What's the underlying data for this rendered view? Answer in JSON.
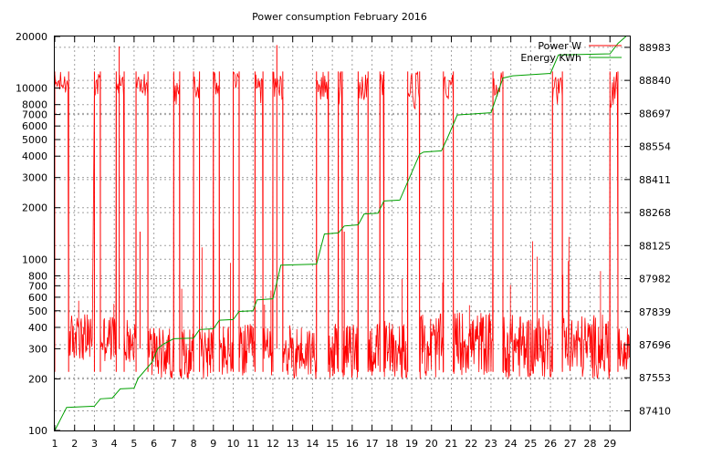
{
  "chart_data": {
    "type": "line",
    "title": "Power consumption February 2016",
    "xlim": [
      1,
      30
    ],
    "x_ticks": [
      1,
      2,
      3,
      4,
      5,
      6,
      7,
      8,
      9,
      10,
      11,
      12,
      13,
      14,
      15,
      16,
      17,
      18,
      19,
      20,
      21,
      22,
      23,
      24,
      25,
      26,
      27,
      28,
      29
    ],
    "y_scale": "log",
    "ylim": [
      100,
      20000
    ],
    "y_ticks": [
      100,
      200,
      300,
      400,
      500,
      600,
      700,
      800,
      1000,
      2000,
      3000,
      4000,
      5000,
      6000,
      7000,
      8000,
      10000,
      20000
    ],
    "y2lim": [
      87325,
      89030
    ],
    "y2_ticks": [
      87410,
      87553,
      87696,
      87839,
      87982,
      88125,
      88268,
      88411,
      88554,
      88697,
      88840,
      88983
    ],
    "grid": true,
    "legend_position": "top-right",
    "colors": {
      "power": "#ff0000",
      "energy": "#00a000"
    },
    "series": [
      {
        "name": "Power W",
        "axis": "left",
        "style": "noisy-line",
        "baseline_ranges": [
          [
            1.7,
            2.9,
            250,
            480
          ],
          [
            3.3,
            4.1,
            250,
            480
          ],
          [
            4.5,
            5.1,
            250,
            450
          ],
          [
            5.7,
            6.0,
            210,
            400
          ],
          [
            6.0,
            7.0,
            200,
            400
          ],
          [
            7.3,
            8.0,
            200,
            400
          ],
          [
            8.3,
            9.0,
            200,
            420
          ],
          [
            9.3,
            10.0,
            200,
            420
          ],
          [
            10.3,
            11.1,
            200,
            420
          ],
          [
            11.5,
            12.0,
            200,
            420
          ],
          [
            12.5,
            14.2,
            200,
            420
          ],
          [
            14.8,
            15.3,
            200,
            420
          ],
          [
            15.5,
            16.3,
            200,
            420
          ],
          [
            16.8,
            17.4,
            200,
            440
          ],
          [
            17.6,
            18.8,
            200,
            450
          ],
          [
            19.4,
            20.6,
            200,
            480
          ],
          [
            21.1,
            23.1,
            210,
            500
          ],
          [
            23.6,
            26.1,
            200,
            480
          ],
          [
            26.6,
            29.0,
            200,
            480
          ],
          [
            29.4,
            30.0,
            220,
            400
          ]
        ],
        "high_ranges": [
          [
            1.0,
            1.7,
            9000,
            12500
          ],
          [
            3.0,
            3.3,
            8500,
            12500
          ],
          [
            4.1,
            4.5,
            8500,
            12500
          ],
          [
            5.1,
            5.7,
            8500,
            12500
          ],
          [
            7.0,
            7.3,
            8000,
            12500
          ],
          [
            8.0,
            8.3,
            8500,
            12500
          ],
          [
            9.0,
            9.3,
            8500,
            12500
          ],
          [
            10.0,
            10.3,
            8500,
            12500
          ],
          [
            11.1,
            11.5,
            8000,
            12500
          ],
          [
            12.0,
            12.5,
            8500,
            12500
          ],
          [
            14.2,
            14.8,
            8500,
            12500
          ],
          [
            15.3,
            15.5,
            8000,
            12500
          ],
          [
            16.3,
            16.8,
            8500,
            12500
          ],
          [
            17.4,
            17.6,
            8500,
            12500
          ],
          [
            18.8,
            19.4,
            7500,
            12500
          ],
          [
            20.6,
            21.1,
            8000,
            12500
          ],
          [
            23.1,
            23.6,
            8500,
            12500
          ],
          [
            26.1,
            26.6,
            8000,
            12500
          ],
          [
            29.0,
            29.4,
            7500,
            12500
          ]
        ],
        "peaks": [
          [
            4.25,
            17500
          ],
          [
            12.2,
            17800
          ],
          [
            5.3,
            1450
          ],
          [
            9.0,
            1500
          ],
          [
            15.6,
            1450
          ]
        ]
      },
      {
        "name": "Energy KWh",
        "axis": "right",
        "style": "line",
        "x": [
          1.0,
          1.6,
          3.0,
          3.3,
          3.9,
          4.3,
          5.0,
          5.2,
          5.9,
          6.2,
          6.5,
          7.0,
          8.0,
          8.3,
          9.0,
          9.3,
          10.0,
          10.3,
          11.0,
          11.2,
          12.0,
          12.4,
          14.2,
          14.6,
          15.3,
          15.6,
          16.3,
          16.6,
          17.3,
          17.6,
          18.4,
          19.4,
          19.6,
          20.5,
          20.8,
          21.3,
          23.0,
          23.6,
          24.1,
          26.0,
          26.4,
          29.0,
          29.4,
          29.8
        ],
        "values": [
          87325,
          87425,
          87430,
          87462,
          87465,
          87505,
          87508,
          87550,
          87620,
          87680,
          87700,
          87722,
          87725,
          87762,
          87765,
          87802,
          87805,
          87840,
          87843,
          87890,
          87895,
          88040,
          88045,
          88175,
          88180,
          88210,
          88215,
          88262,
          88265,
          88318,
          88322,
          88520,
          88530,
          88535,
          88590,
          88690,
          88700,
          88850,
          88860,
          88870,
          88950,
          88955,
          89000,
          89030
        ]
      }
    ]
  }
}
